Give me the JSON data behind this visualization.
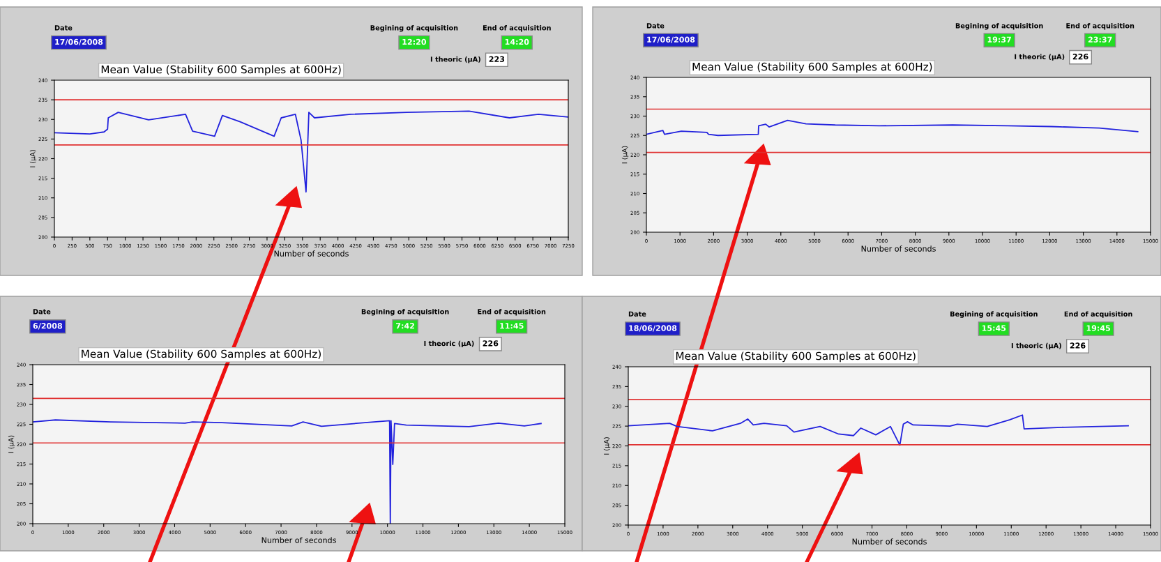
{
  "chart_data": [
    {
      "type": "line",
      "title": "Mean Value (Stability 600 Samples at 600Hz)",
      "xlabel": "Number of seconds",
      "ylabel": "I (µA)",
      "color": "#2222dd",
      "x": [
        0,
        500,
        700,
        750,
        760,
        900,
        1330,
        1850,
        1950,
        2260,
        2370,
        2620,
        3100,
        3200,
        3400,
        3480,
        3550,
        3590,
        3670,
        4180,
        4970,
        5850,
        6420,
        6830,
        7250
      ],
      "values": [
        226.6,
        226.3,
        226.8,
        227.5,
        230.4,
        231.8,
        229.9,
        231.3,
        227.0,
        225.7,
        231.0,
        229.4,
        225.7,
        230.4,
        231.3,
        224.7,
        211.5,
        231.8,
        230.4,
        231.3,
        231.8,
        232.1,
        230.4,
        231.3,
        230.6
      ],
      "xlim": [
        0,
        7250
      ],
      "xticks": [
        0,
        250,
        500,
        750,
        1000,
        1250,
        1500,
        1750,
        2000,
        2250,
        2500,
        2750,
        3000,
        3250,
        3500,
        3750,
        4000,
        4250,
        4500,
        4750,
        5000,
        5250,
        5500,
        5750,
        6000,
        6250,
        6500,
        6750,
        7000,
        7250
      ],
      "ylim": [
        200,
        240
      ],
      "yticks": [
        200,
        205,
        210,
        215,
        220,
        225,
        230,
        235,
        240
      ],
      "ref_lines": [
        {
          "axis": "y",
          "value": 235,
          "color": "#e03030"
        },
        {
          "axis": "y",
          "value": 223.5,
          "color": "#e03030"
        }
      ],
      "annotations": [
        "Date",
        "17/06/2008",
        "Begining of acquisition",
        "12:20",
        "End of acquisition",
        "14:20",
        "I theoric (µA)",
        "223"
      ]
    },
    {
      "type": "line",
      "title": "Mean Value (Stability 600 Samples at 600Hz)",
      "xlabel": "Number of seconds",
      "ylabel": "I (µA)",
      "color": "#2222dd",
      "x": [
        0,
        490,
        540,
        1040,
        1800,
        1850,
        2130,
        3330,
        3340,
        3550,
        3650,
        4200,
        4750,
        5620,
        6930,
        9110,
        10750,
        12050,
        13470,
        14620
      ],
      "values": [
        225.3,
        226.3,
        225.3,
        226.1,
        225.8,
        225.3,
        225.0,
        225.3,
        227.5,
        227.9,
        227.2,
        228.9,
        228.0,
        227.7,
        227.5,
        227.7,
        227.5,
        227.3,
        226.9,
        226.0
      ],
      "xlim": [
        0,
        15000
      ],
      "xticks": [
        0,
        1000,
        2000,
        3000,
        4000,
        5000,
        6000,
        7000,
        8000,
        9000,
        10000,
        11000,
        12000,
        13000,
        14000,
        15000
      ],
      "ylim": [
        200,
        240
      ],
      "yticks": [
        200,
        205,
        210,
        215,
        220,
        225,
        230,
        235,
        240
      ],
      "ref_lines": [
        {
          "axis": "y",
          "value": 231.8,
          "color": "#e03030"
        },
        {
          "axis": "y",
          "value": 220.6,
          "color": "#e03030"
        }
      ],
      "annotations": [
        "Date",
        "17/06/2008",
        "Begining of acquisition",
        "19:37",
        "End of acquisition",
        "23:37",
        "I theoric (µA)",
        "226"
      ]
    },
    {
      "type": "line",
      "title": "Mean Value (Stability 600 Samples at 600Hz)",
      "xlabel": "Number of seconds",
      "ylabel": "I (µA)",
      "color": "#2222dd",
      "x": [
        0,
        640,
        2200,
        4290,
        4500,
        5330,
        7300,
        7620,
        8140,
        9490,
        10060,
        10080,
        10100,
        10150,
        10200,
        10530,
        12300,
        13130,
        13860,
        14330
      ],
      "values": [
        225.6,
        226.1,
        225.6,
        225.3,
        225.6,
        225.4,
        224.6,
        225.6,
        224.5,
        225.5,
        225.9,
        200,
        225.9,
        214.9,
        225.2,
        224.8,
        224.4,
        225.3,
        224.6,
        225.2
      ],
      "xlim": [
        0,
        15000
      ],
      "xticks": [
        0,
        1000,
        2000,
        3000,
        4000,
        5000,
        6000,
        7000,
        8000,
        9000,
        10000,
        11000,
        12000,
        13000,
        14000,
        15000
      ],
      "ylim": [
        200,
        240
      ],
      "yticks": [
        200,
        205,
        210,
        215,
        220,
        225,
        230,
        235,
        240
      ],
      "ref_lines": [
        {
          "axis": "y",
          "value": 231.5,
          "color": "#e03030"
        },
        {
          "axis": "y",
          "value": 220.3,
          "color": "#e03030"
        }
      ],
      "annotations": [
        "Date",
        "6/2008",
        "Begining of acquisition",
        "7:42",
        "End of acquisition",
        "11:45",
        "I theoric (µA)",
        "226"
      ]
    },
    {
      "type": "line",
      "title": "Mean Value (Stability 600 Samples at 600Hz)",
      "xlabel": "Number of seconds",
      "ylabel": "I (µA)",
      "color": "#2222dd",
      "x": [
        0,
        1190,
        1400,
        2420,
        3220,
        3430,
        3590,
        3900,
        4550,
        4760,
        5510,
        6040,
        6470,
        6680,
        7110,
        7530,
        7800,
        7900,
        8020,
        8180,
        9240,
        9450,
        10310,
        10950,
        11320,
        11370,
        12440,
        14360
      ],
      "values": [
        225.1,
        225.7,
        224.9,
        223.8,
        225.7,
        226.8,
        225.3,
        225.7,
        225.1,
        223.5,
        224.9,
        223.0,
        222.6,
        224.5,
        222.8,
        224.9,
        220.2,
        225.5,
        226.1,
        225.3,
        225.0,
        225.5,
        224.9,
        226.6,
        227.8,
        224.3,
        224.7,
        225.1
      ],
      "xlim": [
        0,
        15000
      ],
      "xticks": [
        0,
        1000,
        2000,
        3000,
        4000,
        5000,
        6000,
        7000,
        8000,
        9000,
        10000,
        11000,
        12000,
        13000,
        14000,
        15000
      ],
      "ylim": [
        200,
        240
      ],
      "yticks": [
        200,
        205,
        210,
        215,
        220,
        225,
        230,
        235,
        240
      ],
      "ref_lines": [
        {
          "axis": "y",
          "value": 231.7,
          "color": "#e03030"
        },
        {
          "axis": "y",
          "value": 220.3,
          "color": "#e03030"
        }
      ],
      "annotations": [
        "Date",
        "18/06/2008",
        "Begining of acquisition",
        "15:45",
        "End of acquisition",
        "19:45",
        "I theoric (µA)",
        "226"
      ]
    }
  ]
}
